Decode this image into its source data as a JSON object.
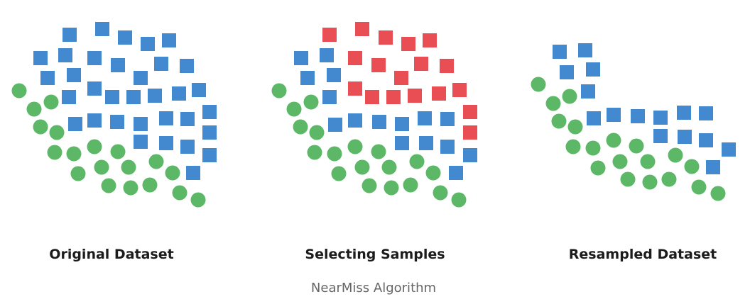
{
  "caption": "NearMiss Algorithm",
  "colors": {
    "majority": "#4389cf",
    "minority": "#5cb766",
    "selected": "#ea4e55"
  },
  "panels": [
    {
      "title": "Original Dataset",
      "squares": [
        [
          98,
          49
        ],
        [
          144,
          41
        ],
        [
          176,
          53
        ],
        [
          208,
          62
        ],
        [
          238,
          57
        ],
        [
          57,
          82
        ],
        [
          92,
          78
        ],
        [
          133,
          82
        ],
        [
          166,
          92
        ],
        [
          227,
          90
        ],
        [
          263,
          93
        ],
        [
          67,
          110
        ],
        [
          104,
          106
        ],
        [
          198,
          110
        ],
        [
          97,
          137
        ],
        [
          133,
          125
        ],
        [
          158,
          137
        ],
        [
          188,
          137
        ],
        [
          218,
          135
        ],
        [
          252,
          132
        ],
        [
          280,
          127
        ],
        [
          295,
          158
        ],
        [
          106,
          175
        ],
        [
          133,
          170
        ],
        [
          165,
          172
        ],
        [
          198,
          175
        ],
        [
          234,
          167
        ],
        [
          264,
          168
        ],
        [
          295,
          187
        ],
        [
          198,
          200
        ],
        [
          234,
          202
        ],
        [
          264,
          207
        ],
        [
          295,
          219
        ],
        [
          272,
          244
        ]
      ],
      "circles": [
        [
          27,
          128
        ],
        [
          48,
          154
        ],
        [
          72,
          144
        ],
        [
          57,
          179
        ],
        [
          80,
          187
        ],
        [
          77,
          215
        ],
        [
          104,
          217
        ],
        [
          133,
          207
        ],
        [
          166,
          214
        ],
        [
          110,
          245
        ],
        [
          143,
          236
        ],
        [
          181,
          236
        ],
        [
          220,
          228
        ],
        [
          243,
          244
        ],
        [
          153,
          262
        ],
        [
          184,
          265
        ],
        [
          211,
          261
        ],
        [
          253,
          272
        ],
        [
          279,
          282
        ]
      ]
    },
    {
      "title": "Selecting Samples",
      "squares": [
        [
          424,
          82
        ],
        [
          460,
          78
        ],
        [
          433,
          110
        ],
        [
          470,
          106
        ],
        [
          464,
          137
        ],
        [
          472,
          176
        ],
        [
          500,
          170
        ],
        [
          534,
          172
        ],
        [
          566,
          175
        ],
        [
          598,
          167
        ],
        [
          630,
          168
        ],
        [
          566,
          202
        ],
        [
          600,
          202
        ],
        [
          630,
          207
        ],
        [
          662,
          219
        ],
        [
          642,
          244
        ]
      ],
      "selected": [
        [
          464,
          49
        ],
        [
          510,
          41
        ],
        [
          543,
          53
        ],
        [
          575,
          62
        ],
        [
          605,
          57
        ],
        [
          500,
          82
        ],
        [
          533,
          92
        ],
        [
          593,
          90
        ],
        [
          629,
          93
        ],
        [
          565,
          110
        ],
        [
          500,
          125
        ],
        [
          524,
          137
        ],
        [
          554,
          137
        ],
        [
          584,
          135
        ],
        [
          618,
          132
        ],
        [
          647,
          127
        ],
        [
          662,
          158
        ],
        [
          662,
          187
        ]
      ],
      "circles": [
        [
          393,
          128
        ],
        [
          414,
          154
        ],
        [
          438,
          144
        ],
        [
          423,
          179
        ],
        [
          446,
          187
        ],
        [
          443,
          215
        ],
        [
          471,
          217
        ],
        [
          500,
          207
        ],
        [
          533,
          214
        ],
        [
          477,
          245
        ],
        [
          510,
          236
        ],
        [
          548,
          236
        ],
        [
          587,
          228
        ],
        [
          610,
          244
        ],
        [
          520,
          262
        ],
        [
          551,
          265
        ],
        [
          578,
          261
        ],
        [
          620,
          272
        ],
        [
          646,
          282
        ]
      ]
    },
    {
      "title": "Resampled Dataset",
      "squares": [
        [
          788,
          73
        ],
        [
          824,
          71
        ],
        [
          798,
          102
        ],
        [
          835,
          98
        ],
        [
          828,
          129
        ],
        [
          836,
          167
        ],
        [
          864,
          162
        ],
        [
          898,
          164
        ],
        [
          930,
          166
        ],
        [
          963,
          159
        ],
        [
          994,
          160
        ],
        [
          930,
          192
        ],
        [
          964,
          193
        ],
        [
          994,
          198
        ],
        [
          1026,
          211
        ],
        [
          1004,
          236
        ]
      ],
      "circles": [
        [
          758,
          119
        ],
        [
          779,
          146
        ],
        [
          802,
          136
        ],
        [
          787,
          171
        ],
        [
          810,
          179
        ],
        [
          807,
          207
        ],
        [
          835,
          209
        ],
        [
          864,
          198
        ],
        [
          896,
          206
        ],
        [
          842,
          237
        ],
        [
          873,
          228
        ],
        [
          912,
          228
        ],
        [
          951,
          219
        ],
        [
          974,
          235
        ],
        [
          884,
          253
        ],
        [
          915,
          257
        ],
        [
          942,
          253
        ],
        [
          984,
          264
        ],
        [
          1011,
          273
        ]
      ]
    }
  ]
}
